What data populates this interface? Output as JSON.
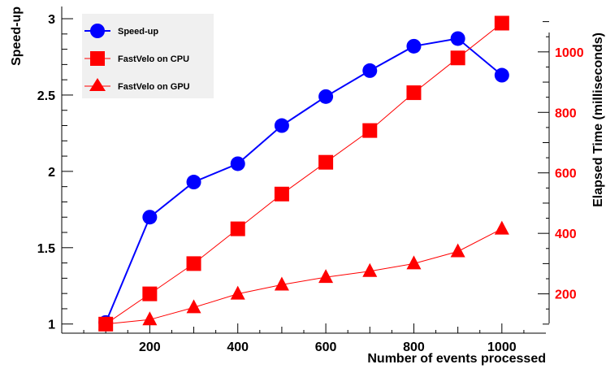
{
  "chart_data": {
    "type": "line",
    "title": "",
    "xlabel": "Number of events processed",
    "ylabel": "Speed-up",
    "y2label": "Elapsed Time (milliseconds)",
    "xlim": [
      0,
      1100
    ],
    "ylim": [
      0.94,
      3.08
    ],
    "y2lim": [
      70,
      1150
    ],
    "x_ticks": [
      "200",
      "400",
      "600",
      "800",
      "1000"
    ],
    "y_ticks": [
      "1",
      "1.5",
      "2",
      "2.5",
      "3"
    ],
    "y2_ticks": [
      "200",
      "400",
      "600",
      "800",
      "1000"
    ],
    "legend_position": "top-left",
    "grid": false,
    "series": [
      {
        "name": "Speed-up",
        "axis": "left",
        "marker": "circle",
        "color": "#0000ff",
        "x": [
          100,
          200,
          300,
          400,
          500,
          600,
          700,
          800,
          900,
          1000
        ],
        "values": [
          1.01,
          1.7,
          1.93,
          2.05,
          2.3,
          2.49,
          2.66,
          2.82,
          2.87,
          2.63
        ]
      },
      {
        "name": "FastVelo on CPU",
        "axis": "right",
        "marker": "square",
        "color": "#ff0000",
        "x": [
          100,
          200,
          300,
          400,
          500,
          600,
          700,
          800,
          900,
          1000
        ],
        "values": [
          100,
          200,
          300,
          415,
          530,
          635,
          740,
          865,
          980,
          1095
        ]
      },
      {
        "name": "FastVelo on GPU",
        "axis": "right",
        "marker": "triangle",
        "color": "#ff0000",
        "x": [
          100,
          200,
          300,
          400,
          500,
          600,
          700,
          800,
          900,
          1000
        ],
        "values": [
          100,
          115,
          155,
          200,
          230,
          255,
          275,
          300,
          340,
          415
        ]
      }
    ]
  }
}
